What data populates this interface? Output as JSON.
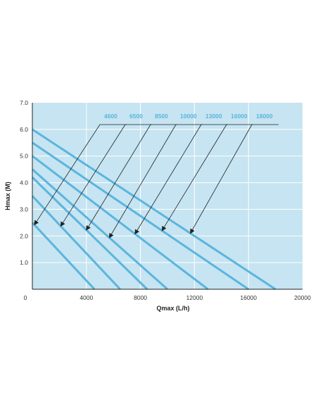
{
  "chart_data": {
    "type": "line",
    "xlabel": "Qmax (L/h)",
    "ylabel": "Hmax (M)",
    "xlim": [
      0,
      20000
    ],
    "ylim": [
      0,
      7
    ],
    "x_ticks": [
      "0",
      "4000",
      "8000",
      "12000",
      "16000",
      "20000"
    ],
    "y_ticks": [
      "1.0",
      "2.0",
      "3.0",
      "4.0",
      "5.0",
      "6.0",
      "7.0"
    ],
    "grid": true,
    "series": [
      {
        "name": "4600",
        "x": [
          0,
          4600
        ],
        "y": [
          2.5,
          0
        ]
      },
      {
        "name": "6500",
        "x": [
          0,
          6500
        ],
        "y": [
          3.5,
          0
        ]
      },
      {
        "name": "8500",
        "x": [
          0,
          8500
        ],
        "y": [
          4.2,
          0
        ]
      },
      {
        "name": "10000",
        "x": [
          0,
          10000
        ],
        "y": [
          4.5,
          0
        ]
      },
      {
        "name": "13000",
        "x": [
          0,
          13000
        ],
        "y": [
          5.0,
          0
        ]
      },
      {
        "name": "16000",
        "x": [
          0,
          16000
        ],
        "y": [
          5.5,
          0
        ]
      },
      {
        "name": "18000",
        "x": [
          0,
          18000
        ],
        "y": [
          6.0,
          0
        ]
      }
    ],
    "annotation_targets": [
      {
        "series": "4600",
        "x": 150
      },
      {
        "series": "6500",
        "x": 2100
      },
      {
        "series": "8500",
        "x": 4000
      },
      {
        "series": "10000",
        "x": 5700
      },
      {
        "series": "13000",
        "x": 7600
      },
      {
        "series": "16000",
        "x": 9600
      },
      {
        "series": "18000",
        "x": 11700
      }
    ]
  },
  "colors": {
    "plot_background": "#c6e4f1",
    "gridline": "#ffffff",
    "series_line": "#5bb5de",
    "label_text": "#5bb5de",
    "axis": "#222222",
    "leader": "#222222"
  }
}
